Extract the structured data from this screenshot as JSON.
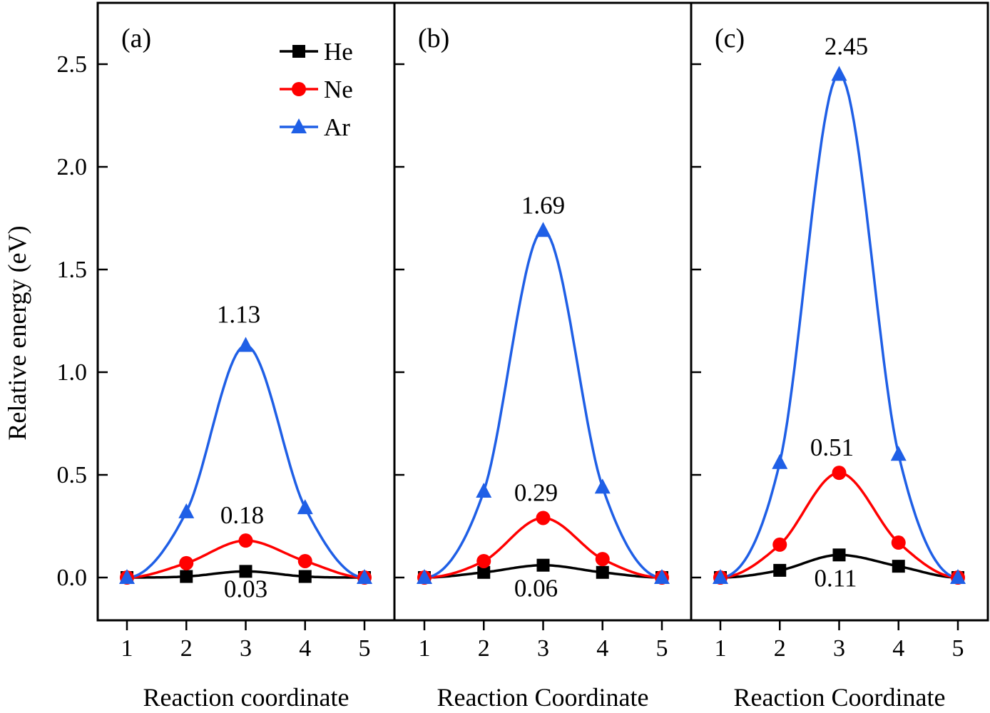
{
  "chart_data": [
    {
      "type": "line",
      "panel_label": "(a)",
      "xlabel": "Reaction coordinate",
      "ylabel": "Relative energy (eV)",
      "x": [
        1,
        2,
        3,
        4,
        5
      ],
      "ylim": [
        -0.2,
        2.75
      ],
      "yticks": [
        "0.0",
        "0.5",
        "1.0",
        "1.5",
        "2.0",
        "2.5"
      ],
      "xticks": [
        "1",
        "2",
        "3",
        "4",
        "5"
      ],
      "series": [
        {
          "name": "He",
          "color": "#000000",
          "marker": "square",
          "values": [
            0,
            0.005,
            0.03,
            0.005,
            0
          ],
          "peak_label": "0.03"
        },
        {
          "name": "Ne",
          "color": "#ff0000",
          "marker": "circle",
          "values": [
            0,
            0.07,
            0.18,
            0.08,
            0
          ],
          "peak_label": "0.18"
        },
        {
          "name": "Ar",
          "color": "#1f5fe6",
          "marker": "triangle",
          "values": [
            0,
            0.32,
            1.13,
            0.34,
            0
          ],
          "peak_label": "1.13"
        }
      ],
      "legend_position": "top-right",
      "grid": false
    },
    {
      "type": "line",
      "panel_label": "(b)",
      "xlabel": "Reaction Coordinate",
      "x": [
        1,
        2,
        3,
        4,
        5
      ],
      "ylim": [
        -0.2,
        2.75
      ],
      "xticks": [
        "1",
        "2",
        "3",
        "4",
        "5"
      ],
      "series": [
        {
          "name": "He",
          "color": "#000000",
          "marker": "square",
          "values": [
            0,
            0.025,
            0.06,
            0.025,
            0
          ],
          "peak_label": "0.06"
        },
        {
          "name": "Ne",
          "color": "#ff0000",
          "marker": "circle",
          "values": [
            0,
            0.08,
            0.29,
            0.09,
            0
          ],
          "peak_label": "0.29"
        },
        {
          "name": "Ar",
          "color": "#1f5fe6",
          "marker": "triangle",
          "values": [
            0,
            0.42,
            1.69,
            0.44,
            0
          ],
          "peak_label": "1.69"
        }
      ],
      "grid": false
    },
    {
      "type": "line",
      "panel_label": "(c)",
      "xlabel": "Reaction Coordinate",
      "x": [
        1,
        2,
        3,
        4,
        5
      ],
      "ylim": [
        -0.2,
        2.75
      ],
      "xticks": [
        "1",
        "2",
        "3",
        "4",
        "5"
      ],
      "series": [
        {
          "name": "He",
          "color": "#000000",
          "marker": "square",
          "values": [
            0,
            0.035,
            0.11,
            0.055,
            0
          ],
          "peak_label": "0.11"
        },
        {
          "name": "Ne",
          "color": "#ff0000",
          "marker": "circle",
          "values": [
            0,
            0.16,
            0.51,
            0.17,
            0
          ],
          "peak_label": "0.51"
        },
        {
          "name": "Ar",
          "color": "#1f5fe6",
          "marker": "triangle",
          "values": [
            0,
            0.56,
            2.45,
            0.6,
            0
          ],
          "peak_label": "2.45"
        }
      ],
      "grid": false
    }
  ]
}
